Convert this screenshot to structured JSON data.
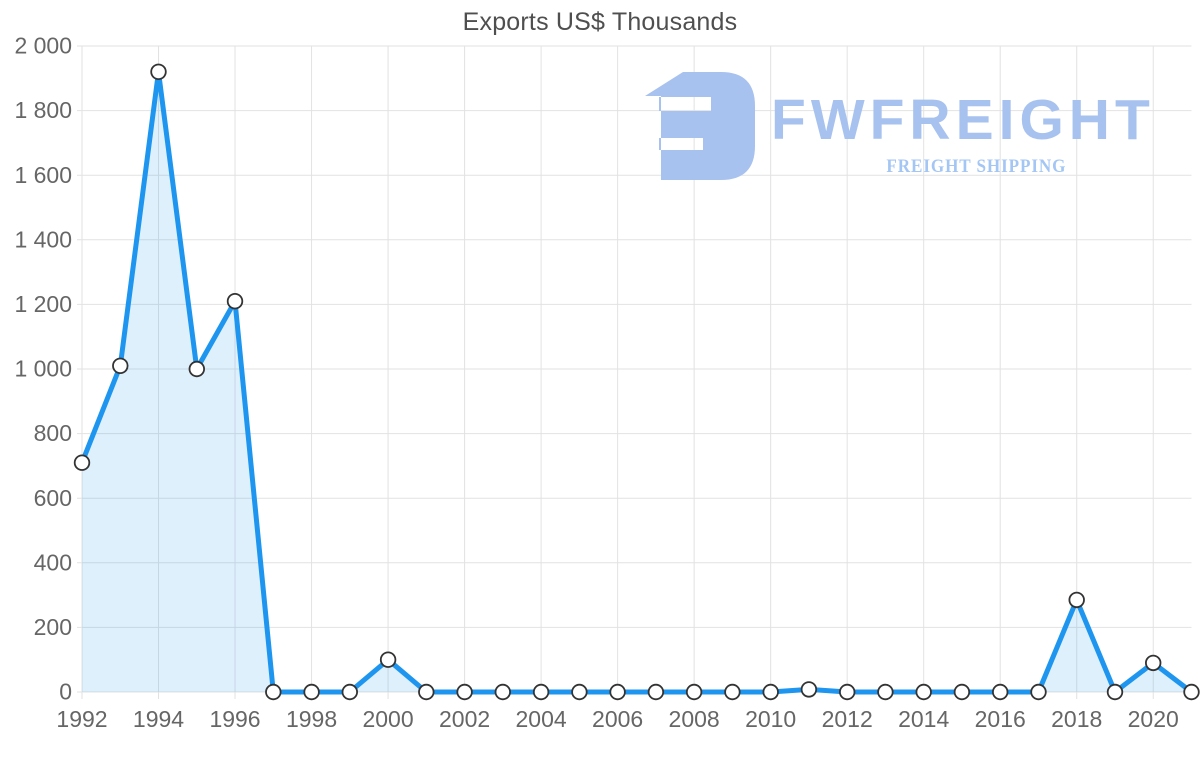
{
  "title": "Exports US$ Thousands",
  "watermark": {
    "brand": "FWFREIGHT",
    "tagline": "FREIGHT SHIPPING",
    "logo_icon": "fwfreight-monogram"
  },
  "colors": {
    "line": "#1e96f0",
    "area_fill": "rgba(30,150,240,0.14)",
    "grid": "#e2e2e2",
    "axis_text": "#666666",
    "title_text": "#4f4f4f",
    "marker_fill": "#ffffff",
    "marker_stroke": "#333333",
    "watermark": "#a7c2ef",
    "tagline": "#a3c6f4"
  },
  "chart_data": {
    "type": "area",
    "title": "Exports US$ Thousands",
    "x": [
      1992,
      1993,
      1994,
      1995,
      1996,
      1997,
      1998,
      1999,
      2000,
      2001,
      2002,
      2003,
      2004,
      2005,
      2006,
      2007,
      2008,
      2009,
      2010,
      2011,
      2012,
      2013,
      2014,
      2015,
      2016,
      2017,
      2018,
      2019,
      2020,
      2021
    ],
    "values": [
      710,
      1010,
      1920,
      1000,
      1210,
      0,
      0,
      0,
      100,
      0,
      0,
      0,
      0,
      0,
      0,
      0,
      0,
      0,
      0,
      8,
      0,
      0,
      0,
      0,
      0,
      0,
      285,
      0,
      90,
      0
    ],
    "xlabel": "",
    "ylabel": "",
    "ylim": [
      0,
      2000
    ],
    "ytick_interval": 200,
    "ytick_labels": [
      "0",
      "200",
      "400",
      "600",
      "800",
      "1 000",
      "1 200",
      "1 400",
      "1 600",
      "1 800",
      "2 000"
    ],
    "xtick_interval": 2,
    "xtick_labels": [
      "1992",
      "1994",
      "1996",
      "1998",
      "2000",
      "2002",
      "2004",
      "2006",
      "2008",
      "2010",
      "2012",
      "2014",
      "2016",
      "2018",
      "2020"
    ],
    "grid": true,
    "legend": "none",
    "marker": "circle"
  }
}
